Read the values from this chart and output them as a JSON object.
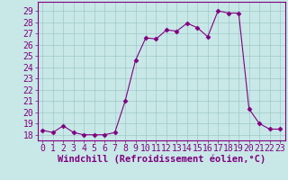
{
  "x": [
    0,
    1,
    2,
    3,
    4,
    5,
    6,
    7,
    8,
    9,
    10,
    11,
    12,
    13,
    14,
    15,
    16,
    17,
    18,
    19,
    20,
    21,
    22,
    23
  ],
  "y": [
    18.4,
    18.2,
    18.8,
    18.2,
    18.0,
    18.0,
    18.0,
    18.2,
    21.0,
    24.6,
    26.6,
    26.5,
    27.3,
    27.2,
    27.9,
    27.5,
    26.7,
    29.0,
    28.8,
    28.8,
    20.3,
    19.0,
    18.5,
    18.5
  ],
  "line_color": "#800080",
  "marker": "D",
  "marker_size": 2.5,
  "bg_color": "#c8e8e8",
  "grid_color": "#a0c8c8",
  "xlabel": "Windchill (Refroidissement éolien,°C)",
  "ylim": [
    17.5,
    29.8
  ],
  "yticks": [
    18,
    19,
    20,
    21,
    22,
    23,
    24,
    25,
    26,
    27,
    28,
    29
  ],
  "xticks": [
    0,
    1,
    2,
    3,
    4,
    5,
    6,
    7,
    8,
    9,
    10,
    11,
    12,
    13,
    14,
    15,
    16,
    17,
    18,
    19,
    20,
    21,
    22,
    23
  ],
  "font_color": "#800080",
  "tick_font_size": 7,
  "label_font_size": 7.5,
  "xlim": [
    -0.5,
    23.5
  ]
}
